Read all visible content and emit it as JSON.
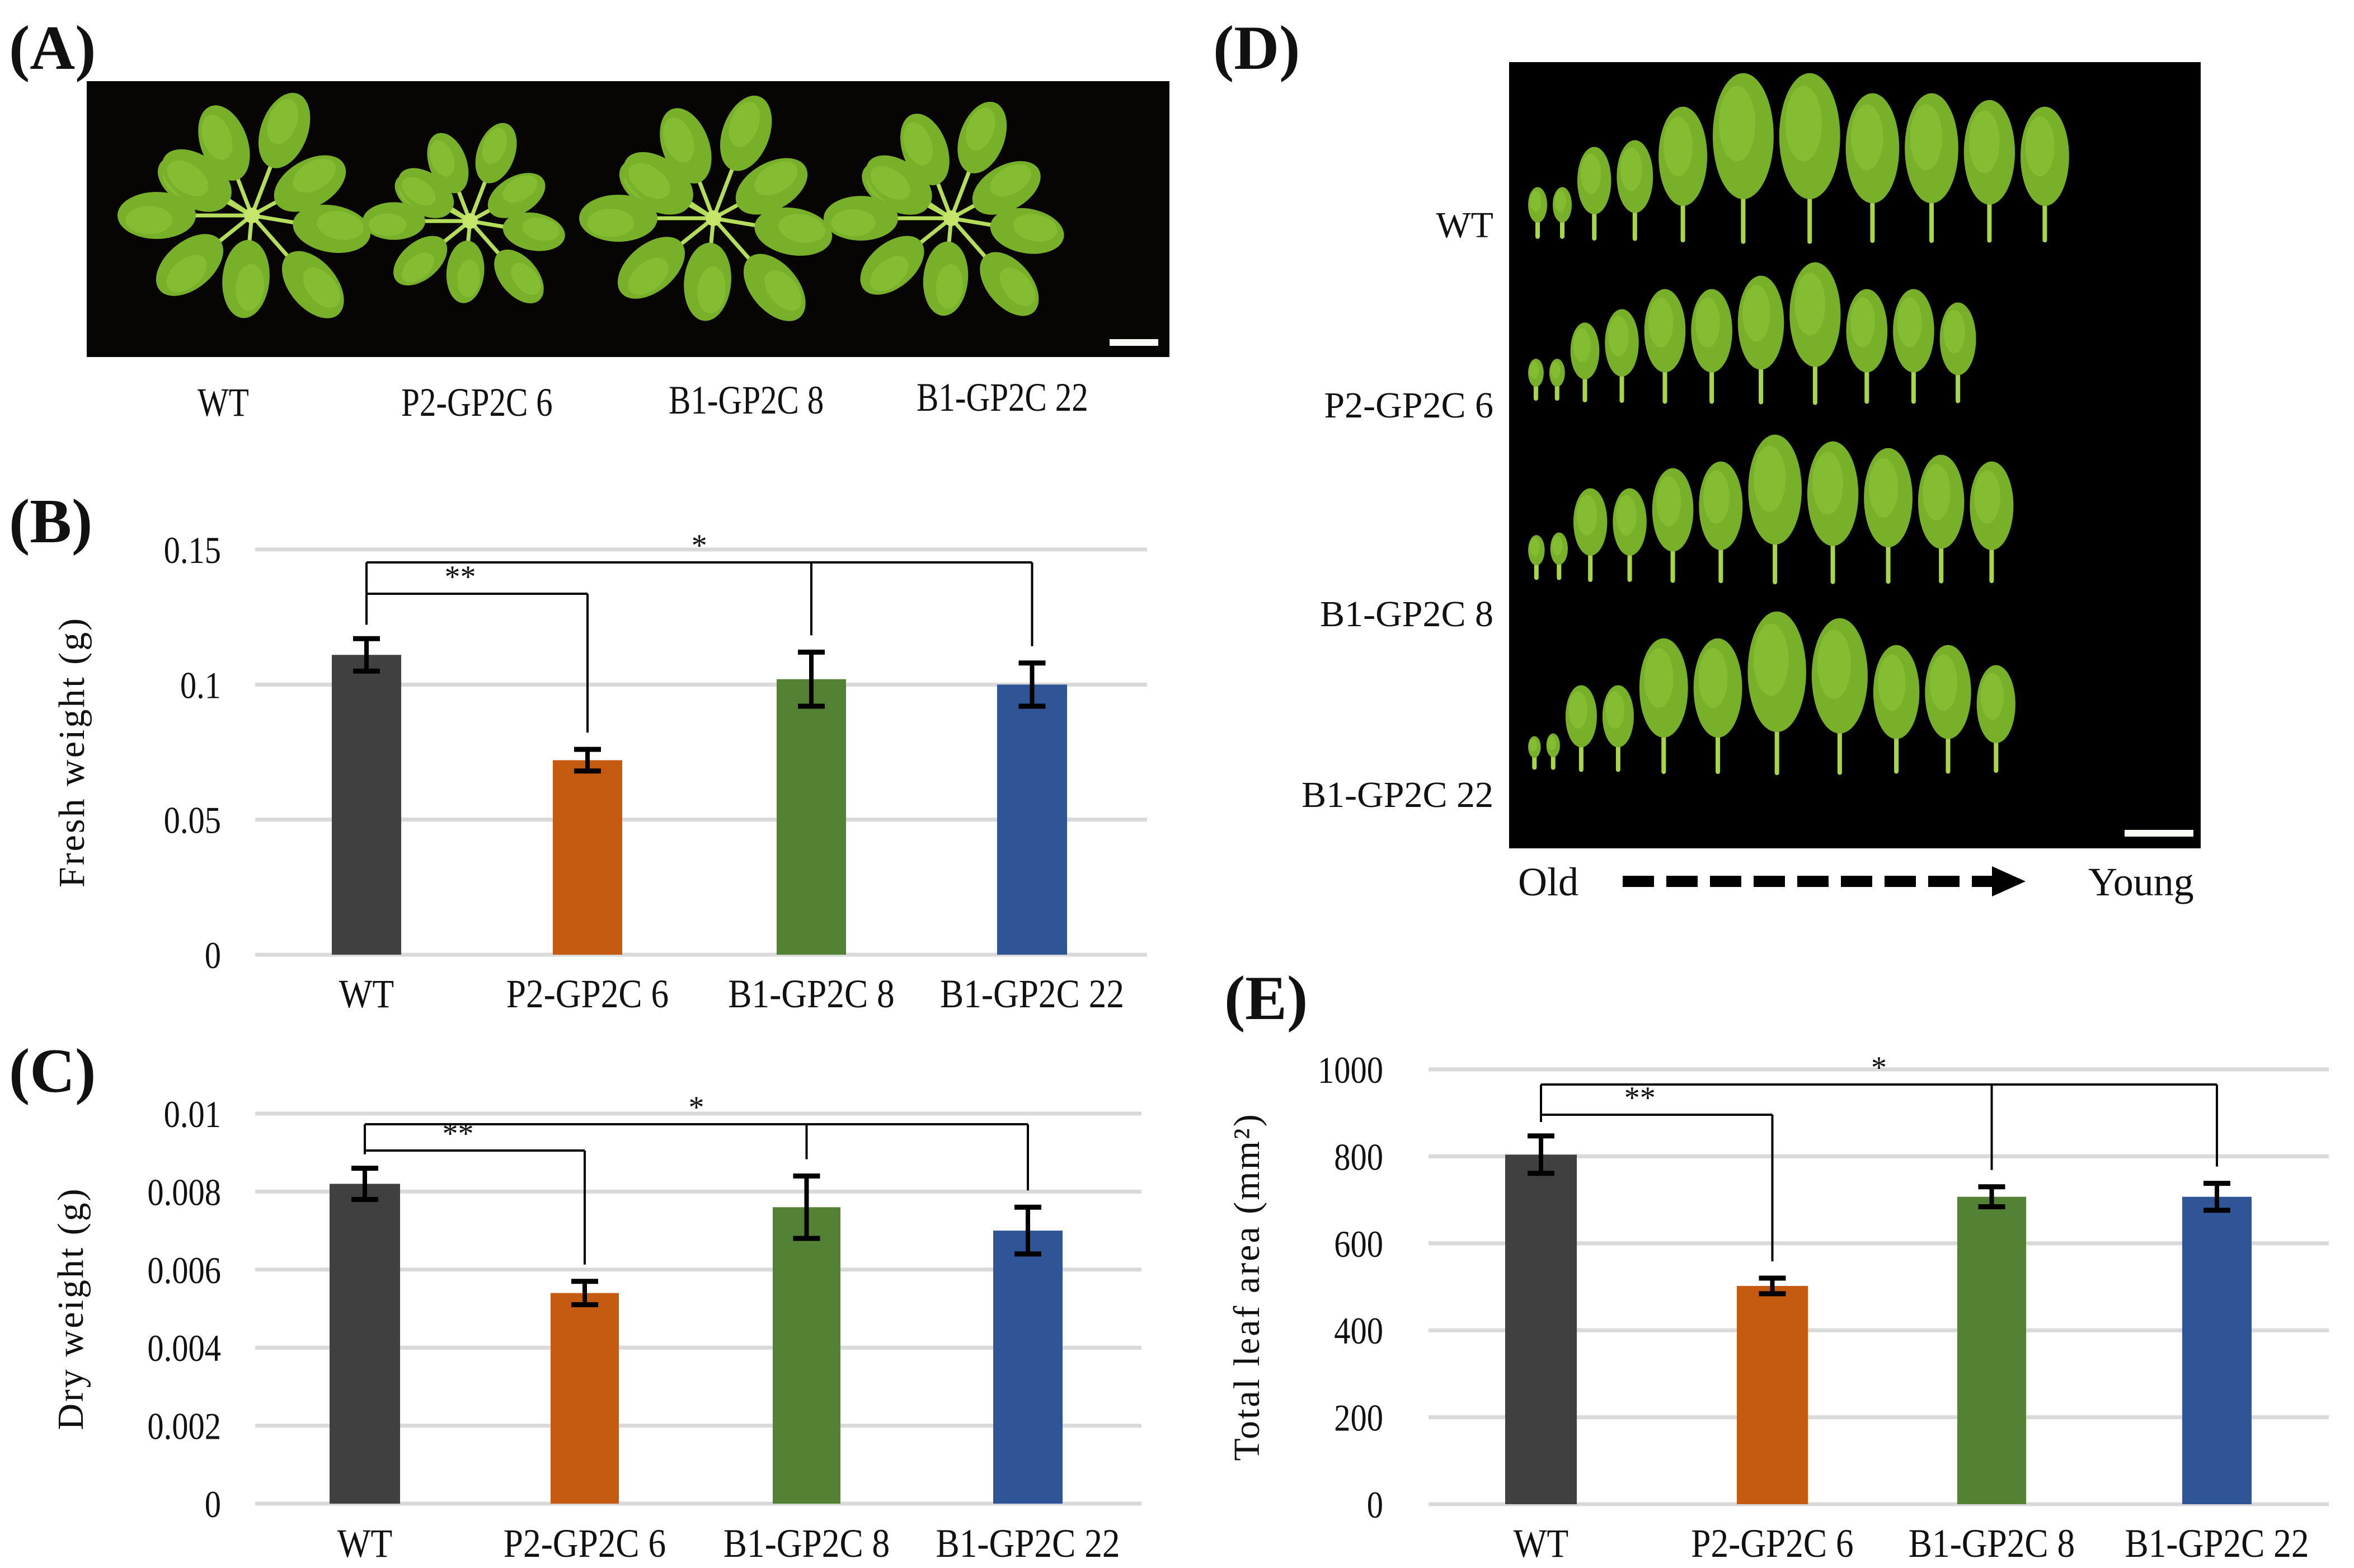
{
  "panels": {
    "A": {
      "letter": "(A)",
      "genotypes": [
        "WT",
        "P2-GP2C 6",
        "B1-GP2C 8",
        "B1-GP2C 22"
      ],
      "scale_bar": true
    },
    "B": {
      "letter": "(B)"
    },
    "C": {
      "letter": "(C)"
    },
    "D": {
      "letter": "(D)",
      "rows": [
        "WT",
        "P2-GP2C 6",
        "B1-GP2C 8",
        "B1-GP2C 22"
      ],
      "old_label": "Old",
      "young_label": "Young",
      "arrow_icon": "dashed-arrow-right",
      "scale_bar": true
    },
    "E": {
      "letter": "(E)"
    }
  },
  "colors": {
    "WT": "#404040",
    "P2-GP2C 6": "#C55A11",
    "B1-GP2C 8": "#548235",
    "B1-GP2C 22": "#2F5597",
    "grid": "#D9D9D9",
    "photo_bg": "#070503",
    "leaf": "#7FB82E"
  },
  "chart_data": [
    {
      "id": "B",
      "type": "bar",
      "title": "",
      "categories": [
        "WT",
        "P2-GP2C 6",
        "B1-GP2C 8",
        "B1-GP2C 22"
      ],
      "values": [
        0.111,
        0.072,
        0.102,
        0.1
      ],
      "errors": [
        0.006,
        0.004,
        0.01,
        0.008
      ],
      "xlabel": "",
      "ylabel": "Fresh weight (g)",
      "ylim": [
        0,
        0.15
      ],
      "yticks": [
        0,
        0.05,
        0.1,
        0.15
      ],
      "ytick_labels": [
        "0",
        "0.05",
        "0.1",
        "0.15"
      ],
      "grid": true,
      "legend": "none",
      "significance": [
        {
          "from": "WT",
          "to": [
            "P2-GP2C 6"
          ],
          "label": "**"
        },
        {
          "from": "WT",
          "to": [
            "B1-GP2C 8",
            "B1-GP2C 22"
          ],
          "label": "*"
        }
      ]
    },
    {
      "id": "C",
      "type": "bar",
      "title": "",
      "categories": [
        "WT",
        "P2-GP2C 6",
        "B1-GP2C 8",
        "B1-GP2C 22"
      ],
      "values": [
        0.0082,
        0.0054,
        0.0076,
        0.007
      ],
      "errors": [
        0.0004,
        0.0003,
        0.0008,
        0.0006
      ],
      "xlabel": "",
      "ylabel": "Dry weight (g)",
      "ylim": [
        0,
        0.01
      ],
      "yticks": [
        0,
        0.002,
        0.004,
        0.006,
        0.008,
        0.01
      ],
      "ytick_labels": [
        "0",
        "0.002",
        "0.004",
        "0.006",
        "0.008",
        "0.01"
      ],
      "grid": true,
      "legend": "none",
      "significance": [
        {
          "from": "WT",
          "to": [
            "P2-GP2C 6"
          ],
          "label": "**"
        },
        {
          "from": "WT",
          "to": [
            "B1-GP2C 8",
            "B1-GP2C 22"
          ],
          "label": "*"
        }
      ]
    },
    {
      "id": "E",
      "type": "bar",
      "title": "",
      "categories": [
        "WT",
        "P2-GP2C 6",
        "B1-GP2C 8",
        "B1-GP2C 22"
      ],
      "values": [
        804,
        502,
        707,
        707
      ],
      "errors": [
        43,
        18,
        23,
        31
      ],
      "xlabel": "",
      "ylabel": "Total leaf area (mm²)",
      "ylim": [
        0,
        1000
      ],
      "yticks": [
        0,
        200,
        400,
        600,
        800,
        1000
      ],
      "ytick_labels": [
        "0",
        "200",
        "400",
        "600",
        "800",
        "1000"
      ],
      "grid": true,
      "legend": "none",
      "significance": [
        {
          "from": "WT",
          "to": [
            "P2-GP2C 6"
          ],
          "label": "**"
        },
        {
          "from": "WT",
          "to": [
            "B1-GP2C 8",
            "B1-GP2C 22"
          ],
          "label": "*"
        }
      ]
    }
  ]
}
